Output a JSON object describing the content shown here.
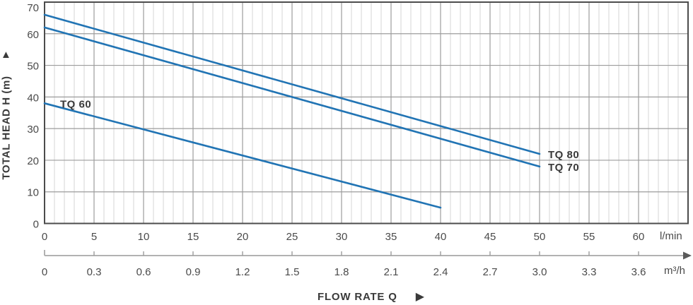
{
  "chart_data": {
    "type": "line",
    "description": "Pump performance curves: total head vs flow rate",
    "y_axis": {
      "label": "TOTAL HEAD H (m)",
      "min": 0,
      "max": 70,
      "major_tick_step": 10,
      "tick_labels": [
        "0",
        "10",
        "20",
        "30",
        "40",
        "50",
        "60",
        "70"
      ]
    },
    "x_axis": {
      "label": "FLOW RATE Q",
      "primary": {
        "unit": "l/min",
        "min": 0,
        "max": 65,
        "major_tick_step": 5,
        "minor_tick_step": 1,
        "tick_labels": [
          "0",
          "5",
          "10",
          "15",
          "20",
          "25",
          "30",
          "35",
          "40",
          "45",
          "50",
          "55",
          "60"
        ]
      },
      "secondary": {
        "unit": "m³/h",
        "tick_step": 0.3,
        "lmin_per_tick": 5,
        "tick_labels": [
          "0",
          "0.3",
          "0.6",
          "0.9",
          "1.2",
          "1.5",
          "1.8",
          "2.1",
          "2.4",
          "2.7",
          "3.0",
          "3.3",
          "3.6"
        ]
      }
    },
    "series": [
      {
        "name": "TQ 60",
        "label_placement": "start",
        "points_q_h": [
          [
            0,
            38
          ],
          [
            40,
            5
          ]
        ]
      },
      {
        "name": "TQ 70",
        "label_placement": "end",
        "points_q_h": [
          [
            0,
            62
          ],
          [
            50,
            18
          ]
        ]
      },
      {
        "name": "TQ 80",
        "label_placement": "end",
        "points_q_h": [
          [
            0,
            66
          ],
          [
            50,
            22
          ]
        ]
      }
    ],
    "colors": {
      "curve": "#2174b4",
      "grid_major": "#9c9c9c",
      "grid_minor": "#d6d6d6",
      "plot_border": "#4c4c4c",
      "secondary_axis": "#b2b2b2",
      "secondary_arrow": "#5a5a5a",
      "tick_text": "#4a4a4a",
      "title_text": "#3a3a3a"
    }
  },
  "icons": {
    "y_axis_arrow": "▲",
    "x_axis_arrow": "▶"
  }
}
